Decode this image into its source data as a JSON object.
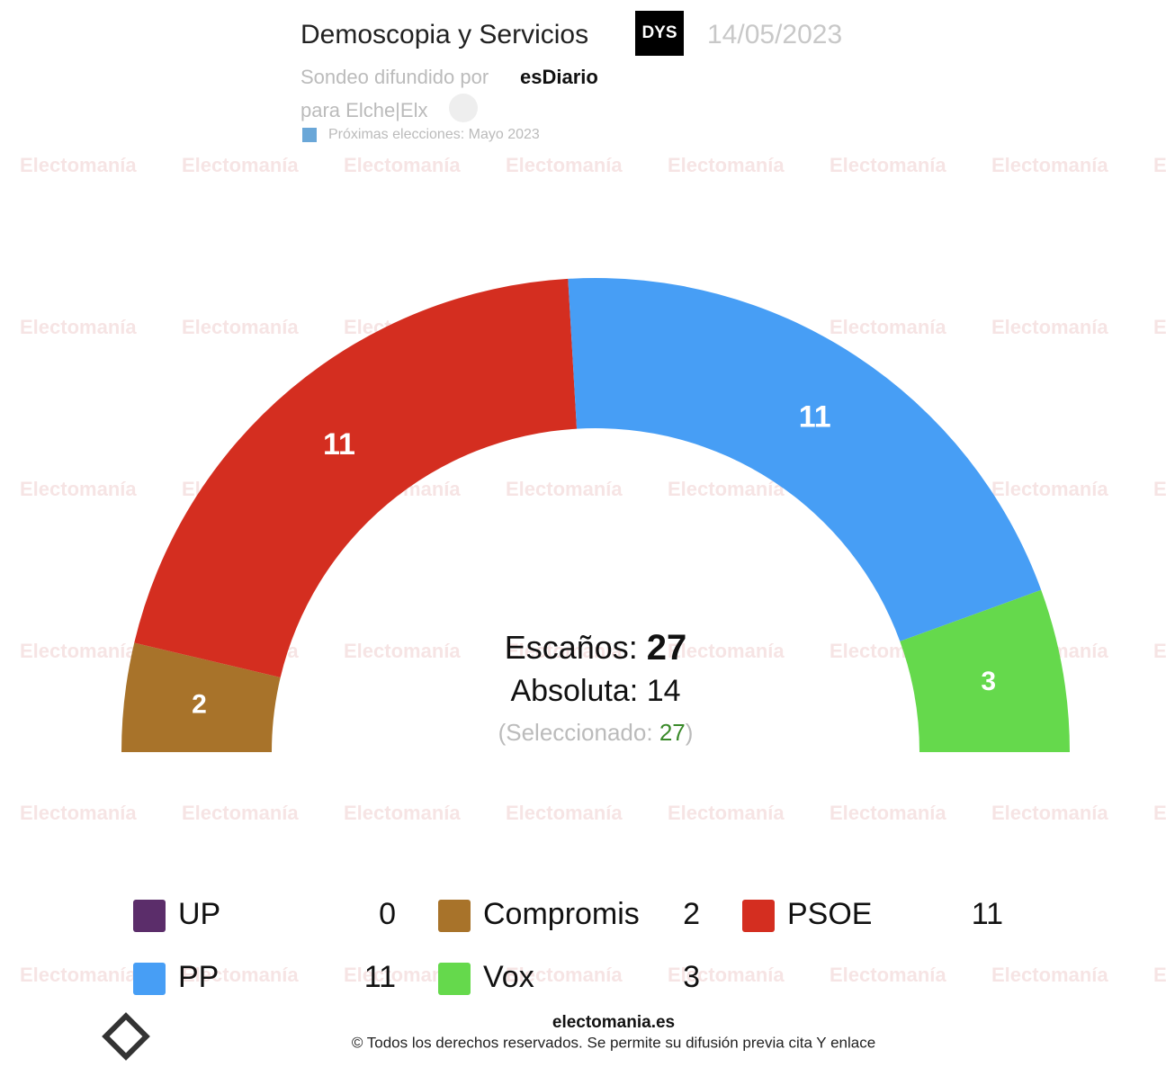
{
  "header": {
    "pollster": "Demoscopia y Servicios",
    "logo": "DYS",
    "date": "14/05/2023",
    "spread_by": "Sondeo difundido por",
    "media": "esDiario",
    "scope": "para Elche|Elx",
    "next": "Próximas elecciones: Mayo 2023"
  },
  "watermark": "Electomanía",
  "chart_data": {
    "type": "semicircle",
    "series": [
      {
        "name": "UP",
        "color": "#5b2d6a",
        "values": [
          0
        ]
      },
      {
        "name": "Compromis",
        "color": "#a8732a",
        "values": [
          2
        ]
      },
      {
        "name": "PSOE",
        "color": "#d42e20",
        "values": [
          11
        ]
      },
      {
        "name": "PP",
        "color": "#479ef5",
        "values": [
          11
        ]
      },
      {
        "name": "Vox",
        "color": "#65d94c",
        "values": [
          3
        ]
      }
    ],
    "seats_label": "Escaños:",
    "seats": 27,
    "majority_label": "Absoluta:",
    "majority": 14,
    "selected_label": "(Seleccionado:",
    "selected": 27,
    "selected_close": ")"
  },
  "footer": {
    "site": "electomania.es",
    "rights": "© Todos los derechos reservados. Se permite su difusión previa cita Y enlace"
  }
}
